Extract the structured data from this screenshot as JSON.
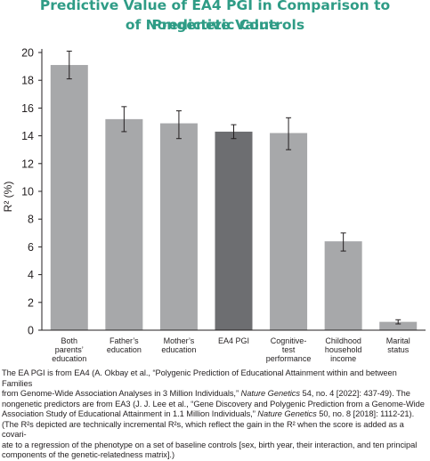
{
  "title": {
    "line1": "Predictive Value of EA4 PGI in Comparison to Predictive Value",
    "line2": "of Nongenetic Controls"
  },
  "colors": {
    "title": "#2f9c86",
    "bar": "#a7a8aa",
    "highlight_bar": "#6d6e71",
    "error_bar": "#231f20",
    "axis": "#231f20",
    "text": "#231f20"
  },
  "chart_data": {
    "type": "bar",
    "ylabel": "R² (%)",
    "ylim": [
      0,
      20
    ],
    "yticks": [
      0,
      2,
      4,
      6,
      8,
      10,
      12,
      14,
      16,
      18,
      20
    ],
    "grid": false,
    "categories": [
      [
        "Both",
        "parents’",
        "education"
      ],
      [
        "Father’s",
        "education"
      ],
      [
        "Mother’s",
        "education"
      ],
      [
        "EA4 PGI"
      ],
      [
        "Cognitive-",
        "test",
        "performance"
      ],
      [
        "Childhood",
        "household",
        "income"
      ],
      [
        "Marital",
        "status"
      ]
    ],
    "values": [
      19.1,
      15.2,
      14.9,
      14.3,
      14.2,
      6.4,
      0.6
    ],
    "error_low": [
      18.1,
      14.3,
      13.8,
      13.8,
      13.0,
      5.7,
      0.45
    ],
    "error_high": [
      20.1,
      16.1,
      15.8,
      14.8,
      15.3,
      7.0,
      0.75
    ],
    "highlight_index": 3
  },
  "footnote": {
    "l1a": "The EA PGI is from EA4 (A. Okbay et al., “Polygenic Prediction of Educational Attainment within and between Families",
    "l2a": "from Genome-Wide Association Analyses in 3 Million Individuals,” ",
    "l2i": "Nature Genetics",
    "l2b": " 54, no. 4 [2022]: 437-49). The",
    "l3": "nongenetic predictors are from EA3 (J. J. Lee et al., “Gene Discovery and Polygenic Prediction from a Genome-Wide",
    "l4a": "Association Study of Educational Attainment in 1.1 Million Individuals,” ",
    "l4i": "Nature Genetics",
    "l4b": " 50, no. 8 [2018]: 1112-21).",
    "l5": "(The R²s depicted are technically incremental R²s, which reflect the gain in the R² when the score is added as a covari-",
    "l6": "ate to a regression of the phenotype on a set of baseline controls [sex, birth year, their interaction, and ten principal",
    "l7": "components of the genetic-relatedness matrix].)"
  }
}
